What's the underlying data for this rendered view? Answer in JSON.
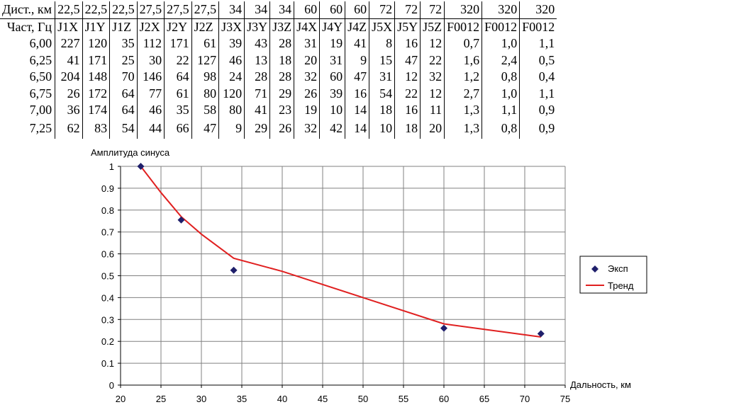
{
  "table": {
    "dist_label": "Дист., км",
    "dist_values": [
      "22,5",
      "22,5",
      "22,5",
      "27,5",
      "27,5",
      "27,5",
      "34",
      "34",
      "34",
      "60",
      "60",
      "60",
      "72",
      "72",
      "72",
      "320",
      "320",
      "320"
    ],
    "chan_label": "Част, Гц",
    "channels": [
      "J1X",
      "J1Y",
      "J1Z",
      "J2X",
      "J2Y",
      "J2Z",
      "J3X",
      "J3Y",
      "J3Z",
      "J4X",
      "J4Y",
      "J4Z",
      "J5X",
      "J5Y",
      "J5Z",
      "F0012",
      "F0012",
      "F0012"
    ],
    "rows": [
      {
        "freq": "6,00",
        "values": [
          "227",
          "120",
          "35",
          "112",
          "171",
          "61",
          "39",
          "43",
          "28",
          "31",
          "19",
          "41",
          "8",
          "16",
          "12",
          "0,7",
          "1,0",
          "1,1"
        ]
      },
      {
        "freq": "6,25",
        "values": [
          "41",
          "171",
          "25",
          "30",
          "22",
          "127",
          "46",
          "13",
          "18",
          "20",
          "31",
          "9",
          "15",
          "47",
          "22",
          "1,6",
          "2,4",
          "0,5"
        ]
      },
      {
        "freq": "6,50",
        "values": [
          "204",
          "148",
          "70",
          "146",
          "64",
          "98",
          "24",
          "28",
          "28",
          "32",
          "60",
          "47",
          "31",
          "12",
          "32",
          "1,2",
          "0,8",
          "0,4"
        ]
      },
      {
        "freq": "6,75",
        "values": [
          "26",
          "172",
          "64",
          "77",
          "61",
          "80",
          "120",
          "71",
          "29",
          "26",
          "39",
          "16",
          "54",
          "22",
          "12",
          "2,7",
          "1,0",
          "1,1"
        ]
      },
      {
        "freq": "7,00",
        "values": [
          "36",
          "174",
          "64",
          "46",
          "35",
          "58",
          "80",
          "41",
          "23",
          "19",
          "10",
          "14",
          "18",
          "16",
          "11",
          "1,3",
          "1,1",
          "0,9"
        ]
      },
      {
        "freq": "7,25",
        "values": [
          "62",
          "83",
          "54",
          "44",
          "66",
          "47",
          "9",
          "29",
          "26",
          "32",
          "42",
          "14",
          "10",
          "18",
          "20",
          "1,3",
          "0,8",
          "0,9"
        ]
      }
    ]
  },
  "chart_data": {
    "type": "scatter",
    "ylabel": "Амплитуда синуса",
    "xlabel": "Дальность, км",
    "xlim": [
      20,
      75
    ],
    "ylim": [
      0,
      1
    ],
    "x_ticks": [
      20,
      25,
      30,
      35,
      40,
      45,
      50,
      55,
      60,
      65,
      70,
      75
    ],
    "y_ticks": [
      "0",
      "0.1",
      "0.2",
      "0.3",
      "0.4",
      "0.5",
      "0.6",
      "0.7",
      "0.8",
      "0.9",
      "1"
    ],
    "grid": true,
    "legend_position": "right",
    "series": [
      {
        "name": "Эксп",
        "kind": "points",
        "color": "#1f1f6b",
        "x": [
          22.5,
          27.5,
          34,
          60,
          72
        ],
        "y": [
          1.0,
          0.755,
          0.525,
          0.26,
          0.235
        ]
      },
      {
        "name": "Тренд",
        "kind": "line",
        "color": "#e02020",
        "x": [
          22.5,
          25,
          27.5,
          30,
          34,
          40,
          50,
          60,
          65,
          72
        ],
        "y": [
          1.0,
          0.88,
          0.77,
          0.69,
          0.58,
          0.52,
          0.4,
          0.28,
          0.255,
          0.22
        ]
      }
    ],
    "plot_background": "#ffffff",
    "grid_color": "#808080"
  }
}
